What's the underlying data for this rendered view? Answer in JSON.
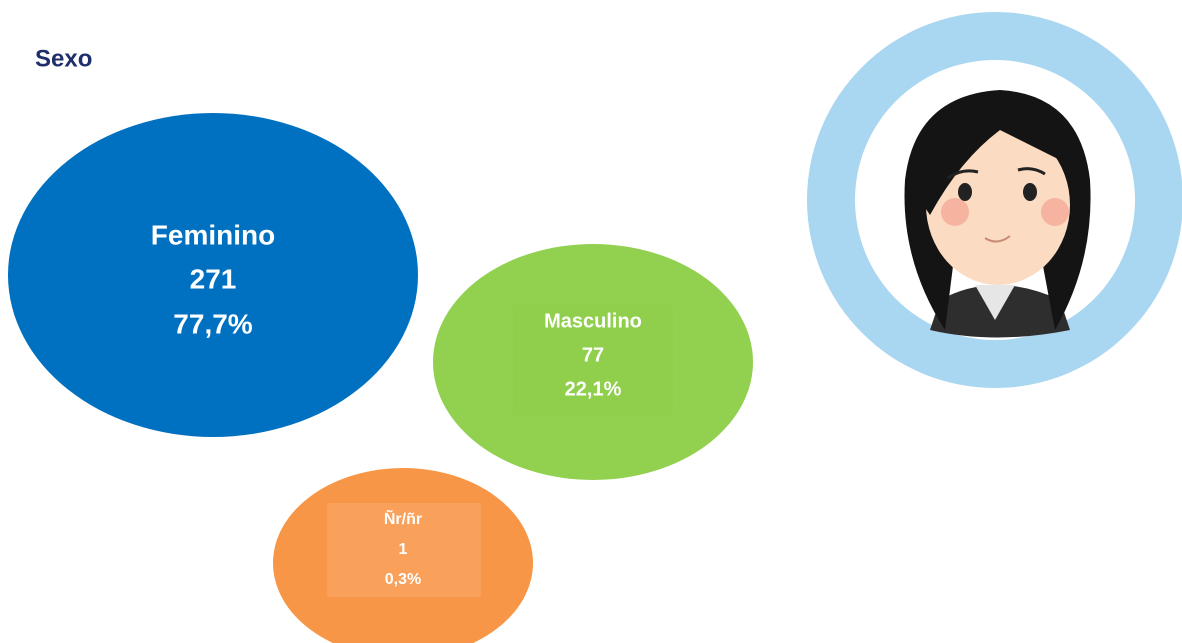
{
  "title": "Sexo",
  "groups": [
    {
      "label": "Feminino",
      "count": "271",
      "percent": "77,7%"
    },
    {
      "label": "Masculino",
      "count": "77",
      "percent": "22,1%"
    },
    {
      "label": "Ñr/ñr",
      "count": "1",
      "percent": "0,3%"
    }
  ]
}
